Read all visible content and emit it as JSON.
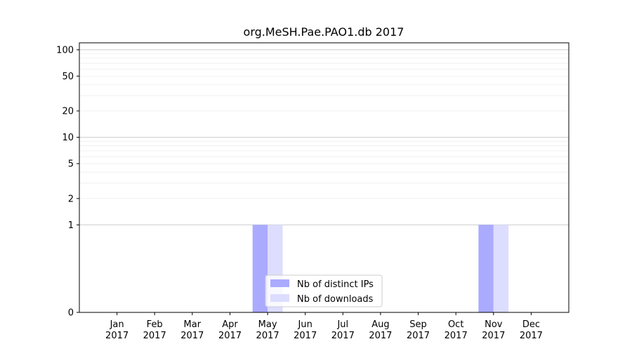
{
  "chart_data": {
    "type": "bar",
    "title": "org.MeSH.Pae.PAO1.db 2017",
    "xlabel": "",
    "ylabel": "",
    "categories": [
      [
        "Jan",
        "2017"
      ],
      [
        "Feb",
        "2017"
      ],
      [
        "Mar",
        "2017"
      ],
      [
        "Apr",
        "2017"
      ],
      [
        "May",
        "2017"
      ],
      [
        "Jun",
        "2017"
      ],
      [
        "Jul",
        "2017"
      ],
      [
        "Aug",
        "2017"
      ],
      [
        "Sep",
        "2017"
      ],
      [
        "Oct",
        "2017"
      ],
      [
        "Nov",
        "2017"
      ],
      [
        "Dec",
        "2017"
      ]
    ],
    "series": [
      {
        "name": "Nb of distinct IPs",
        "color": "#aaaaff",
        "values": [
          0,
          0,
          0,
          0,
          1,
          0,
          0,
          0,
          0,
          0,
          1,
          0
        ]
      },
      {
        "name": "Nb of downloads",
        "color": "#ddddff",
        "values": [
          0,
          0,
          0,
          0,
          1,
          0,
          0,
          0,
          0,
          0,
          1,
          0
        ]
      }
    ],
    "y_scale": "symlog",
    "y_ticks": [
      0,
      1,
      2,
      5,
      10,
      20,
      50,
      100
    ],
    "ylim": [
      0,
      120
    ],
    "grid": true,
    "legend_position": "lower center"
  }
}
